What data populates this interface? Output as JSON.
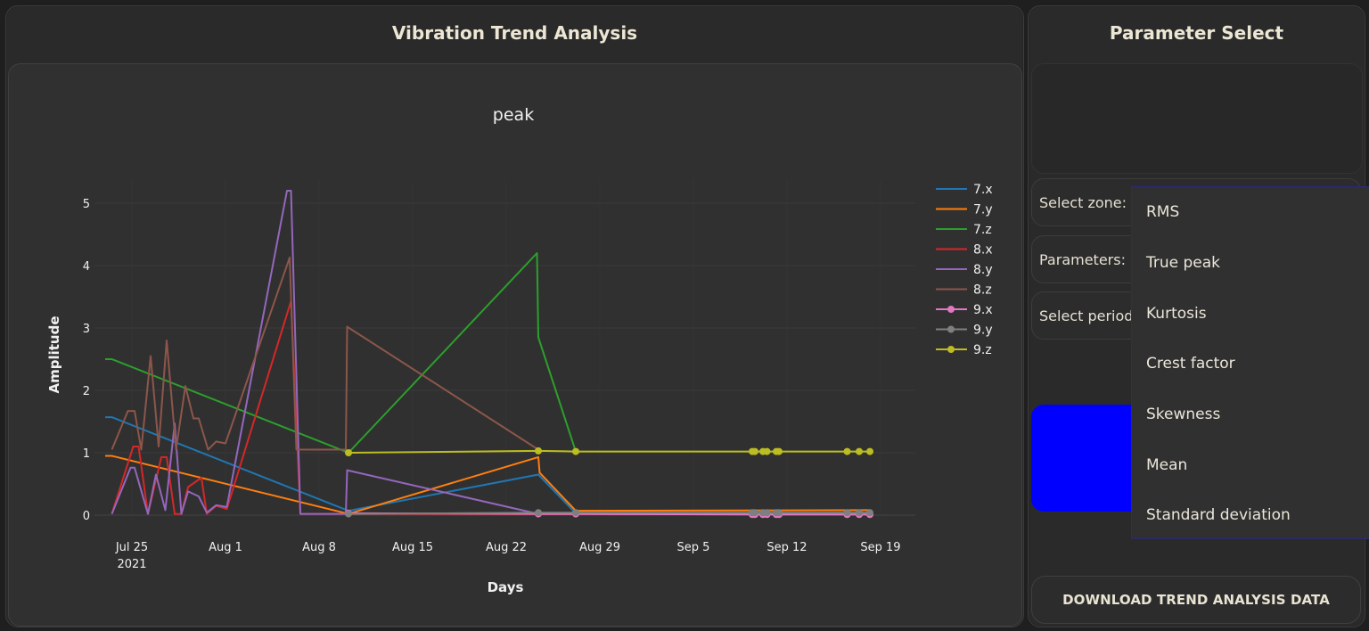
{
  "left_panel": {
    "title": "Vibration Trend Analysis"
  },
  "right_panel": {
    "title": "Parameter Select",
    "fields": {
      "zone_label": "Select zone:",
      "parameters_label": "Parameters:",
      "period_label": "Select period"
    },
    "download_button": "DOWNLOAD TREND ANALYSIS DATA",
    "blue_button_color": "#0000ff",
    "dropdown": {
      "items": [
        "RMS",
        "True peak",
        "Kurtosis",
        "Crest factor",
        "Skewness",
        "Mean",
        "Standard deviation"
      ]
    }
  },
  "chart_data": {
    "type": "line",
    "title": "peak",
    "xlabel": "Days",
    "ylabel": "Amplitude",
    "ylim": [
      0,
      5.3
    ],
    "yticks": [
      0,
      1,
      2,
      3,
      4,
      5
    ],
    "xticks": [
      {
        "label": "Jul 25",
        "sub": "2021",
        "day": 0
      },
      {
        "label": "Aug 1",
        "day": 7
      },
      {
        "label": "Aug 8",
        "day": 14
      },
      {
        "label": "Aug 15",
        "day": 21
      },
      {
        "label": "Aug 22",
        "day": 28
      },
      {
        "label": "Aug 29",
        "day": 35
      },
      {
        "label": "Sep 5",
        "day": 42
      },
      {
        "label": "Sep 12",
        "day": 49
      },
      {
        "label": "Sep 19",
        "day": 56
      }
    ],
    "x_units": "days since Jul 25 2021",
    "grid": true,
    "legend_position": "right",
    "series": [
      {
        "name": "7.x",
        "color": "#1f77b4",
        "markers": false,
        "points": [
          [
            -2,
            1.57
          ],
          [
            -1.5,
            1.57
          ],
          [
            16.2,
            0.07
          ],
          [
            30.4,
            0.65
          ],
          [
            33.2,
            0.03
          ],
          [
            55.2,
            0.04
          ]
        ]
      },
      {
        "name": "7.y",
        "color": "#ff7f0e",
        "markers": false,
        "points": [
          [
            -2,
            0.95
          ],
          [
            -1.5,
            0.95
          ],
          [
            16.2,
            0.02
          ],
          [
            30.4,
            0.93
          ],
          [
            30.5,
            0.68
          ],
          [
            33.2,
            0.07
          ],
          [
            55.2,
            0.08
          ]
        ]
      },
      {
        "name": "7.z",
        "color": "#2ca02c",
        "markers": false,
        "points": [
          [
            -2,
            2.5
          ],
          [
            -1.5,
            2.5
          ],
          [
            16.2,
            1.0
          ],
          [
            30.3,
            4.2
          ],
          [
            30.4,
            2.85
          ],
          [
            33.2,
            1.02
          ]
        ]
      },
      {
        "name": "8.x",
        "color": "#d62728",
        "markers": false,
        "points": [
          [
            -1.5,
            0.02
          ],
          [
            0.1,
            1.1
          ],
          [
            0.5,
            1.1
          ],
          [
            1.2,
            0.02
          ],
          [
            2.2,
            0.93
          ],
          [
            2.6,
            0.93
          ],
          [
            3.2,
            0.02
          ],
          [
            3.7,
            0.02
          ],
          [
            4.2,
            0.45
          ],
          [
            5.2,
            0.6
          ],
          [
            5.6,
            0.02
          ],
          [
            6.3,
            0.15
          ],
          [
            7.1,
            0.1
          ],
          [
            11.9,
            3.43
          ],
          [
            12.6,
            0.02
          ],
          [
            16.2,
            0.02
          ],
          [
            55.2,
            0.01
          ]
        ]
      },
      {
        "name": "8.y",
        "color": "#9467bd",
        "markers": false,
        "points": [
          [
            -1.5,
            0.02
          ],
          [
            -0.1,
            0.76
          ],
          [
            0.2,
            0.76
          ],
          [
            1.2,
            0.02
          ],
          [
            1.8,
            0.65
          ],
          [
            2.5,
            0.08
          ],
          [
            3.2,
            1.47
          ],
          [
            3.7,
            0.02
          ],
          [
            4.2,
            0.38
          ],
          [
            5.0,
            0.3
          ],
          [
            5.6,
            0.04
          ],
          [
            6.3,
            0.16
          ],
          [
            7.1,
            0.13
          ],
          [
            11.6,
            5.2
          ],
          [
            11.9,
            5.2
          ],
          [
            12.6,
            0.02
          ],
          [
            16.0,
            0.02
          ],
          [
            16.1,
            0.72
          ],
          [
            30.4,
            0.02
          ],
          [
            55.2,
            0.01
          ]
        ]
      },
      {
        "name": "8.z",
        "color": "#8c564b",
        "markers": false,
        "points": [
          [
            -1.5,
            1.05
          ],
          [
            -0.3,
            1.67
          ],
          [
            0.2,
            1.67
          ],
          [
            0.7,
            1.05
          ],
          [
            1.4,
            2.55
          ],
          [
            2.0,
            1.1
          ],
          [
            2.6,
            2.8
          ],
          [
            3.3,
            1.05
          ],
          [
            4.0,
            2.07
          ],
          [
            4.6,
            1.55
          ],
          [
            5.0,
            1.55
          ],
          [
            5.7,
            1.05
          ],
          [
            6.3,
            1.18
          ],
          [
            7.0,
            1.15
          ],
          [
            11.8,
            4.13
          ],
          [
            12.3,
            1.05
          ],
          [
            16.0,
            1.05
          ],
          [
            16.1,
            3.02
          ],
          [
            30.4,
            1.05
          ]
        ]
      },
      {
        "name": "9.x",
        "color": "#e377c2",
        "markers": true,
        "points": [
          [
            16.2,
            0.03
          ],
          [
            30.4,
            0.02
          ],
          [
            33.2,
            0.02
          ],
          [
            46.4,
            0.01
          ],
          [
            46.6,
            0.01
          ],
          [
            47.2,
            0.01
          ],
          [
            47.5,
            0.01
          ],
          [
            48.2,
            0.01
          ],
          [
            48.4,
            0.01
          ],
          [
            53.5,
            0.01
          ],
          [
            54.4,
            0.01
          ],
          [
            55.2,
            0.01
          ]
        ]
      },
      {
        "name": "9.y",
        "color": "#7f7f7f",
        "markers": true,
        "points": [
          [
            16.2,
            0.02
          ],
          [
            30.4,
            0.04
          ],
          [
            33.2,
            0.04
          ],
          [
            46.4,
            0.04
          ],
          [
            46.6,
            0.04
          ],
          [
            47.2,
            0.04
          ],
          [
            47.5,
            0.04
          ],
          [
            48.2,
            0.04
          ],
          [
            48.4,
            0.04
          ],
          [
            53.5,
            0.04
          ],
          [
            54.4,
            0.04
          ],
          [
            55.2,
            0.04
          ]
        ]
      },
      {
        "name": "9.z",
        "color": "#bcbd22",
        "markers": true,
        "points": [
          [
            16.2,
            1.0
          ],
          [
            30.4,
            1.03
          ],
          [
            33.2,
            1.02
          ],
          [
            46.4,
            1.02
          ],
          [
            46.6,
            1.02
          ],
          [
            47.2,
            1.02
          ],
          [
            47.5,
            1.02
          ],
          [
            48.2,
            1.02
          ],
          [
            48.4,
            1.02
          ],
          [
            53.5,
            1.02
          ],
          [
            54.4,
            1.02
          ],
          [
            55.2,
            1.02
          ]
        ]
      }
    ]
  }
}
